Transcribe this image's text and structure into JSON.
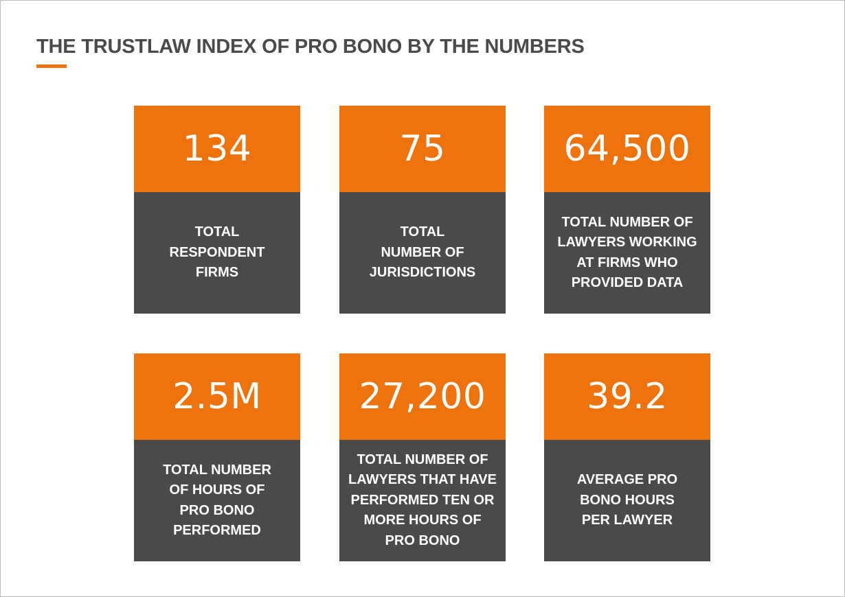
{
  "title": "THE TRUSTLAW INDEX OF PRO BONO BY THE NUMBERS",
  "colors": {
    "accent": "#ee730d",
    "panel_dark": "#4a4a49",
    "title_text": "#4a4a49",
    "card_text": "#ffffff"
  },
  "stats": [
    {
      "value": "134",
      "label": "TOTAL\nRESPONDENT\nFIRMS"
    },
    {
      "value": "75",
      "label": "TOTAL\nNUMBER OF\nJURISDICTIONS"
    },
    {
      "value": "64,500",
      "label": "TOTAL NUMBER OF\nLAWYERS WORKING\nAT FIRMS WHO\nPROVIDED DATA"
    },
    {
      "value": "2.5M",
      "label": "TOTAL NUMBER\nOF HOURS OF\nPRO BONO\nPERFORMED"
    },
    {
      "value": "27,200",
      "label": "TOTAL NUMBER OF\nLAWYERS THAT HAVE\nPERFORMED TEN OR\nMORE HOURS OF\nPRO BONO"
    },
    {
      "value": "39.2",
      "label": "AVERAGE PRO\nBONO HOURS\nPER LAWYER"
    }
  ]
}
